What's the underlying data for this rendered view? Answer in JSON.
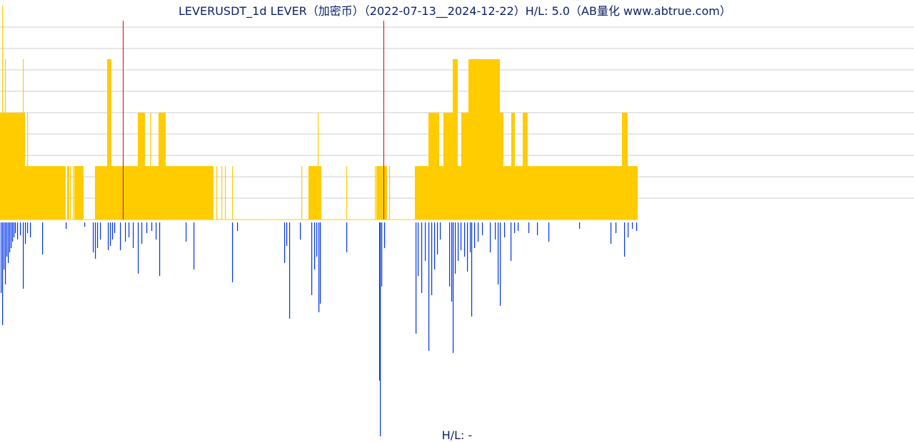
{
  "chart_data": {
    "type": "bar",
    "title": "LEVERUSDT_1d LEVER（加密币）（2022-07-13__2024-12-22）H/L: 5.0（AB量化  www.abtrue.com）",
    "footer": "H/L: -",
    "grid": true,
    "ylim_upper": [
      0,
      10
    ],
    "ylim_lower": [
      0,
      1
    ],
    "colors": {
      "upper_bar": "#ffcc00",
      "upper_spike": "#dd0000",
      "lower_bar": "#0033ee",
      "grid": "#cccccc",
      "baseline": "#ffcc00"
    },
    "upper_series": {
      "name": "",
      "segments": [
        {
          "from": 0,
          "to": 35,
          "value": 5
        },
        {
          "from": 35,
          "to": 92,
          "value": 2.5
        },
        {
          "from": 92,
          "to": 94,
          "value": 0
        },
        {
          "from": 94,
          "to": 97,
          "value": 2.5
        },
        {
          "from": 97,
          "to": 104,
          "value": 0
        },
        {
          "from": 104,
          "to": 117,
          "value": 2.5
        },
        {
          "from": 117,
          "to": 133,
          "value": 0
        },
        {
          "from": 133,
          "to": 150,
          "value": 2.5
        },
        {
          "from": 150,
          "to": 156,
          "value": 7.5
        },
        {
          "from": 156,
          "to": 193,
          "value": 2.5
        },
        {
          "from": 193,
          "to": 203,
          "value": 5
        },
        {
          "from": 203,
          "to": 222,
          "value": 2.5
        },
        {
          "from": 222,
          "to": 232,
          "value": 5
        },
        {
          "from": 232,
          "to": 299,
          "value": 2.5
        },
        {
          "from": 299,
          "to": 432,
          "value": 0
        },
        {
          "from": 432,
          "to": 450,
          "value": 2.5
        },
        {
          "from": 450,
          "to": 527,
          "value": 0
        },
        {
          "from": 527,
          "to": 542,
          "value": 2.5
        },
        {
          "from": 542,
          "to": 581,
          "value": 0
        },
        {
          "from": 581,
          "to": 600,
          "value": 2.5
        },
        {
          "from": 600,
          "to": 615,
          "value": 5
        },
        {
          "from": 615,
          "to": 621,
          "value": 2.5
        },
        {
          "from": 621,
          "to": 634,
          "value": 5
        },
        {
          "from": 634,
          "to": 641,
          "value": 7.5
        },
        {
          "from": 641,
          "to": 646,
          "value": 2.5
        },
        {
          "from": 646,
          "to": 656,
          "value": 5
        },
        {
          "from": 656,
          "to": 700,
          "value": 7.5
        },
        {
          "from": 700,
          "to": 705,
          "value": 5
        },
        {
          "from": 705,
          "to": 716,
          "value": 2.5
        },
        {
          "from": 716,
          "to": 721,
          "value": 5
        },
        {
          "from": 721,
          "to": 732,
          "value": 2.5
        },
        {
          "from": 732,
          "to": 739,
          "value": 5
        },
        {
          "from": 739,
          "to": 871,
          "value": 2.5
        },
        {
          "from": 871,
          "to": 879,
          "value": 5
        },
        {
          "from": 879,
          "to": 893,
          "value": 2.5
        }
      ],
      "thin_bars": [
        {
          "x": 3,
          "value": 10
        },
        {
          "x": 7,
          "value": 7.5
        },
        {
          "x": 32,
          "value": 7.5
        },
        {
          "x": 38,
          "value": 5
        },
        {
          "x": 98,
          "value": 2.5
        },
        {
          "x": 102,
          "value": 2.5
        },
        {
          "x": 210,
          "value": 5
        },
        {
          "x": 303,
          "value": 2.5
        },
        {
          "x": 310,
          "value": 2.5
        },
        {
          "x": 315,
          "value": 2.5
        },
        {
          "x": 325,
          "value": 2.5
        },
        {
          "x": 422,
          "value": 2.5
        },
        {
          "x": 445,
          "value": 5
        },
        {
          "x": 485,
          "value": 2.5
        },
        {
          "x": 525,
          "value": 2.5
        },
        {
          "x": 545,
          "value": 2.5
        }
      ],
      "spikes": [
        {
          "x": 172,
          "value": 9.3
        },
        {
          "x": 537,
          "value": 9.3
        }
      ]
    },
    "lower_series": {
      "name": "",
      "bars": [
        {
          "x": 1,
          "value": 0.33
        },
        {
          "x": 3,
          "value": 0.48
        },
        {
          "x": 5,
          "value": 0.22
        },
        {
          "x": 7,
          "value": 0.29
        },
        {
          "x": 9,
          "value": 0.16
        },
        {
          "x": 11,
          "value": 0.19
        },
        {
          "x": 13,
          "value": 0.14
        },
        {
          "x": 15,
          "value": 0.12
        },
        {
          "x": 17,
          "value": 0.09
        },
        {
          "x": 19,
          "value": 0.07
        },
        {
          "x": 21,
          "value": 0.05
        },
        {
          "x": 24,
          "value": 0.08
        },
        {
          "x": 28,
          "value": 0.06
        },
        {
          "x": 32,
          "value": 0.31
        },
        {
          "x": 35,
          "value": 0.1
        },
        {
          "x": 38,
          "value": 0.05
        },
        {
          "x": 42,
          "value": 0.07
        },
        {
          "x": 59,
          "value": 0.15
        },
        {
          "x": 92,
          "value": 0.03
        },
        {
          "x": 118,
          "value": 0.02
        },
        {
          "x": 130,
          "value": 0.14
        },
        {
          "x": 133,
          "value": 0.17
        },
        {
          "x": 136,
          "value": 0.12
        },
        {
          "x": 140,
          "value": 0.08
        },
        {
          "x": 151,
          "value": 0.13
        },
        {
          "x": 154,
          "value": 0.11
        },
        {
          "x": 157,
          "value": 0.08
        },
        {
          "x": 160,
          "value": 0.05
        },
        {
          "x": 168,
          "value": 0.13
        },
        {
          "x": 175,
          "value": 0.09
        },
        {
          "x": 180,
          "value": 0.07
        },
        {
          "x": 186,
          "value": 0.12
        },
        {
          "x": 193,
          "value": 0.24
        },
        {
          "x": 198,
          "value": 0.1
        },
        {
          "x": 205,
          "value": 0.05
        },
        {
          "x": 212,
          "value": 0.04
        },
        {
          "x": 218,
          "value": 0.08
        },
        {
          "x": 223,
          "value": 0.25
        },
        {
          "x": 260,
          "value": 0.09
        },
        {
          "x": 271,
          "value": 0.22
        },
        {
          "x": 325,
          "value": 0.28
        },
        {
          "x": 332,
          "value": 0.04
        },
        {
          "x": 398,
          "value": 0.19
        },
        {
          "x": 401,
          "value": 0.11
        },
        {
          "x": 405,
          "value": 0.45
        },
        {
          "x": 420,
          "value": 0.08
        },
        {
          "x": 436,
          "value": 0.34
        },
        {
          "x": 440,
          "value": 0.22
        },
        {
          "x": 443,
          "value": 0.16
        },
        {
          "x": 446,
          "value": 0.42
        },
        {
          "x": 448,
          "value": 0.38
        },
        {
          "x": 485,
          "value": 0.14
        },
        {
          "x": 531,
          "value": 0.74
        },
        {
          "x": 532,
          "value": 1.0
        },
        {
          "x": 534,
          "value": 0.3
        },
        {
          "x": 538,
          "value": 0.12
        },
        {
          "x": 582,
          "value": 0.52
        },
        {
          "x": 585,
          "value": 0.25
        },
        {
          "x": 590,
          "value": 0.33
        },
        {
          "x": 595,
          "value": 0.18
        },
        {
          "x": 600,
          "value": 0.6
        },
        {
          "x": 604,
          "value": 0.34
        },
        {
          "x": 608,
          "value": 0.22
        },
        {
          "x": 612,
          "value": 0.15
        },
        {
          "x": 616,
          "value": 0.08
        },
        {
          "x": 629,
          "value": 0.3
        },
        {
          "x": 632,
          "value": 0.37
        },
        {
          "x": 634,
          "value": 0.61
        },
        {
          "x": 637,
          "value": 0.24
        },
        {
          "x": 641,
          "value": 0.18
        },
        {
          "x": 645,
          "value": 0.13
        },
        {
          "x": 650,
          "value": 0.16
        },
        {
          "x": 654,
          "value": 0.23
        },
        {
          "x": 658,
          "value": 0.14
        },
        {
          "x": 660,
          "value": 0.44
        },
        {
          "x": 664,
          "value": 0.12
        },
        {
          "x": 669,
          "value": 0.09
        },
        {
          "x": 675,
          "value": 0.06
        },
        {
          "x": 686,
          "value": 0.14
        },
        {
          "x": 693,
          "value": 0.08
        },
        {
          "x": 697,
          "value": 0.29
        },
        {
          "x": 700,
          "value": 0.39
        },
        {
          "x": 706,
          "value": 0.07
        },
        {
          "x": 715,
          "value": 0.18
        },
        {
          "x": 720,
          "value": 0.05
        },
        {
          "x": 725,
          "value": 0.04
        },
        {
          "x": 740,
          "value": 0.05
        },
        {
          "x": 752,
          "value": 0.06
        },
        {
          "x": 768,
          "value": 0.09
        },
        {
          "x": 811,
          "value": 0.03
        },
        {
          "x": 855,
          "value": 0.1
        },
        {
          "x": 862,
          "value": 0.05
        },
        {
          "x": 874,
          "value": 0.16
        },
        {
          "x": 879,
          "value": 0.07
        },
        {
          "x": 885,
          "value": 0.03
        },
        {
          "x": 891,
          "value": 0.04
        }
      ]
    }
  }
}
